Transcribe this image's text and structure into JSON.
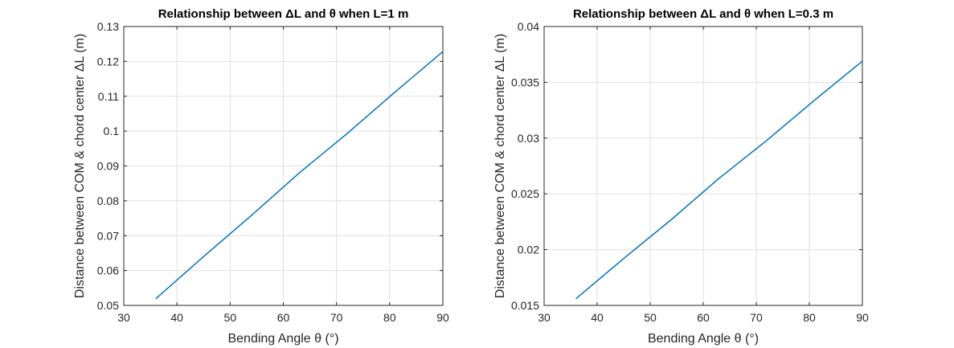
{
  "chart_data": [
    {
      "type": "line",
      "title": "Relationship between ΔL and θ when L=1 m",
      "xlabel": "Bending Angle θ (°)",
      "ylabel": "Distance between COM & chord center ΔL (m)",
      "xlim": [
        30,
        90
      ],
      "ylim": [
        0.05,
        0.13
      ],
      "xticks": [
        "30",
        "40",
        "50",
        "60",
        "70",
        "80",
        "90"
      ],
      "yticks": [
        "0.05",
        "0.06",
        "0.07",
        "0.08",
        "0.09",
        "0.1",
        "0.11",
        "0.12",
        "0.13"
      ],
      "grid": true,
      "color": "#0072bd",
      "series": [
        {
          "x": [
            36,
            45,
            54,
            63,
            72,
            81,
            90
          ],
          "y": [
            0.0519,
            0.064,
            0.0758,
            0.088,
            0.0993,
            0.1112,
            0.1228
          ]
        }
      ]
    },
    {
      "type": "line",
      "title": "Relationship between ΔL and θ when L=0.3 m",
      "xlabel": "Bending Angle θ (°)",
      "ylabel": "Distance between COM & chord center ΔL (m)",
      "xlim": [
        30,
        90
      ],
      "ylim": [
        0.015,
        0.04
      ],
      "xticks": [
        "30",
        "40",
        "50",
        "60",
        "70",
        "80",
        "90"
      ],
      "yticks": [
        "0.015",
        "0.02",
        "0.025",
        "0.03",
        "0.035",
        "0.04"
      ],
      "grid": true,
      "color": "#0072bd",
      "series": [
        {
          "x": [
            36,
            45,
            54,
            63,
            72,
            81,
            90
          ],
          "y": [
            0.0156,
            0.0192,
            0.0227,
            0.0264,
            0.0298,
            0.0334,
            0.0369
          ]
        }
      ]
    }
  ]
}
